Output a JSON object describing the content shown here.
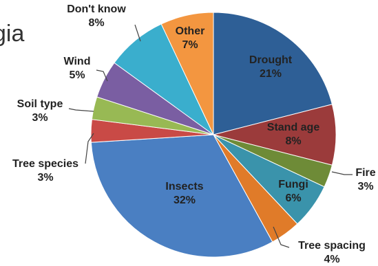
{
  "partial_title": "gia",
  "chart_data": {
    "type": "pie",
    "title": "",
    "slices": [
      {
        "label": "Drought",
        "value": 21,
        "pct_text": "21%",
        "color": "#2e5f96",
        "label_inside": true
      },
      {
        "label": "Stand age",
        "value": 8,
        "pct_text": "8%",
        "color": "#9b3b3b",
        "label_inside": true
      },
      {
        "label": "Fire",
        "value": 3,
        "pct_text": "3%",
        "color": "#6e8b37",
        "label_inside": false
      },
      {
        "label": "Fungi",
        "value": 6,
        "pct_text": "6%",
        "color": "#3a93ab",
        "label_inside": true
      },
      {
        "label": "Tree spacing",
        "value": 4,
        "pct_text": "4%",
        "color": "#e07b29",
        "label_inside": false
      },
      {
        "label": "Insects",
        "value": 32,
        "pct_text": "32%",
        "color": "#4a7fc2",
        "label_inside": true
      },
      {
        "label": "Tree species",
        "value": 3,
        "pct_text": "3%",
        "color": "#c94a46",
        "label_inside": false
      },
      {
        "label": "Soil type",
        "value": 3,
        "pct_text": "3%",
        "color": "#98b954",
        "label_inside": false
      },
      {
        "label": "Wind",
        "value": 5,
        "pct_text": "5%",
        "color": "#7a5ea2",
        "label_inside": false
      },
      {
        "label": "Don't know",
        "value": 8,
        "pct_text": "8%",
        "color": "#3aaecd",
        "label_inside": false
      },
      {
        "label": "Other",
        "value": 7,
        "pct_text": "7%",
        "color": "#f39640",
        "label_inside": true
      }
    ]
  }
}
